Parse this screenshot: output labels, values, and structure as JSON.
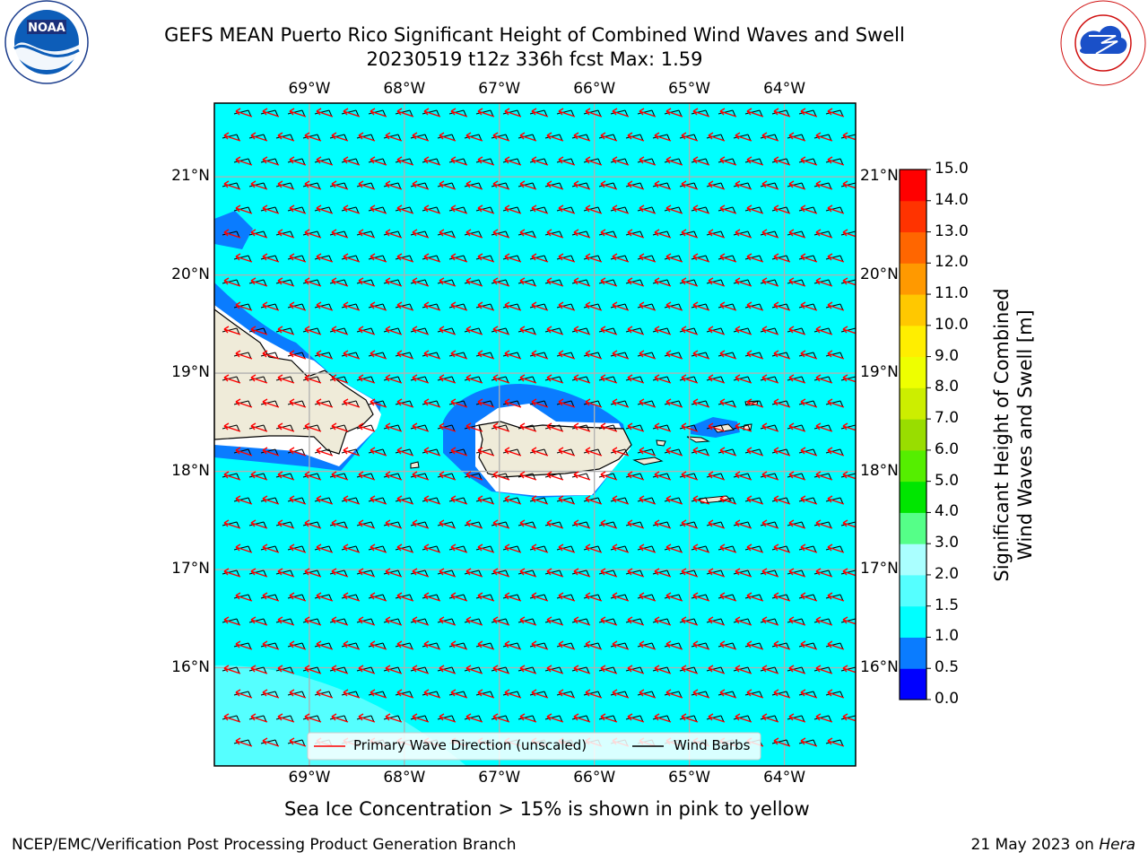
{
  "title": {
    "line1": "GEFS MEAN Puerto Rico Significant Height of Combined Wind Waves and Swell",
    "line2": "20230519 t12z 336h fcst   Max: 1.59"
  },
  "map": {
    "lon_labels": [
      "69°W",
      "68°W",
      "67°W",
      "66°W",
      "65°W",
      "64°W"
    ],
    "lon_values": [
      -69,
      -68,
      -67,
      -66,
      -65,
      -64
    ],
    "lat_labels": [
      "21°N",
      "20°N",
      "19°N",
      "18°N",
      "17°N",
      "16°N"
    ],
    "lat_values": [
      21,
      20,
      19,
      18,
      17,
      16
    ],
    "lon_range": [
      -70,
      -63.25
    ],
    "lat_range": [
      15,
      21.75
    ],
    "grid": true,
    "ocean_color": "#00ffff",
    "land_color": "#efebd9",
    "region_labels": []
  },
  "legend": {
    "wave_direction": "Primary Wave Direction (unscaled)",
    "wind_barbs": "Wind Barbs",
    "wave_color": "#ff0000",
    "barb_color": "#000000"
  },
  "colorbar": {
    "label_line1": "Significant Height of Combined",
    "label_line2": "Wind Waves and Swell [m]",
    "ticks": [
      "0.0",
      "0.5",
      "1.0",
      "1.5",
      "2.0",
      "3.0",
      "4.0",
      "5.0",
      "6.0",
      "7.0",
      "8.0",
      "9.0",
      "10.0",
      "11.0",
      "12.0",
      "13.0",
      "14.0",
      "15.0"
    ],
    "colors": [
      "#0000ff",
      "#0a7cff",
      "#00ffff",
      "#55ffff",
      "#aaffff",
      "#55ff88",
      "#00e600",
      "#55ee00",
      "#99dd00",
      "#ccee00",
      "#eeff00",
      "#ffee00",
      "#ffc800",
      "#ff9900",
      "#ff6600",
      "#ff3300",
      "#ff0000"
    ]
  },
  "caption": "Sea Ice Concentration > 15% is shown in pink to yellow",
  "footer": {
    "left": "NCEP/EMC/Verification Post Processing Product Generation Branch",
    "right_date": "21 May 2023 on",
    "right_host": "Hera"
  },
  "logos": {
    "left_name": "noaa-logo",
    "left_text": "NOAA",
    "left_ring": "NATIONAL OCEANIC AND ATMOSPHERIC ADMINISTRATION · U.S. DEPARTMENT OF COMMERCE",
    "right_name": "nws-logo",
    "right_ring": "NATIONAL WEATHER SERVICE"
  }
}
